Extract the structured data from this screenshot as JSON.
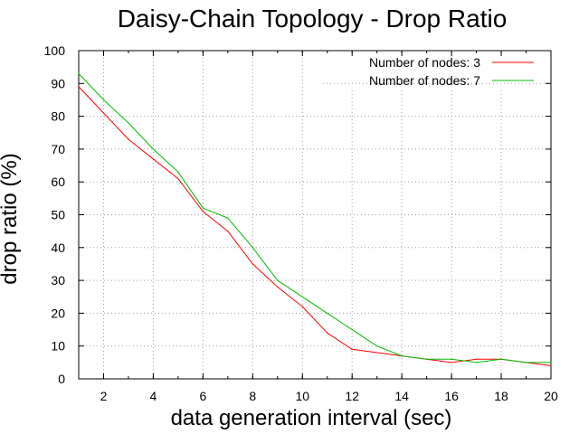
{
  "chart_data": {
    "type": "line",
    "title": "Daisy-Chain Topology - Drop Ratio",
    "xlabel": "data generation interval (sec)",
    "ylabel": "drop ratio (%)",
    "xlim": [
      1,
      20
    ],
    "ylim": [
      0,
      100
    ],
    "xticks": [
      2,
      4,
      6,
      8,
      10,
      12,
      14,
      16,
      18,
      20
    ],
    "yticks": [
      0,
      10,
      20,
      30,
      40,
      50,
      60,
      70,
      80,
      90,
      100
    ],
    "grid": true,
    "legend_position": "top-right",
    "x": [
      1,
      2,
      3,
      4,
      5,
      6,
      7,
      8,
      9,
      10,
      11,
      12,
      13,
      14,
      15,
      16,
      17,
      18,
      19,
      20
    ],
    "series": [
      {
        "name": "Number of nodes: 3",
        "color": "#ff0000",
        "values": [
          89,
          81,
          73,
          67,
          61,
          51,
          45,
          35,
          28,
          22,
          14,
          9,
          8,
          7,
          6,
          5,
          6,
          6,
          5,
          4
        ]
      },
      {
        "name": "Number of nodes: 7",
        "color": "#00bb00",
        "values": [
          93,
          85,
          78,
          70,
          63,
          52,
          49,
          40,
          30,
          25,
          20,
          15,
          10,
          7,
          6,
          6,
          5,
          6,
          5,
          5
        ]
      }
    ]
  }
}
